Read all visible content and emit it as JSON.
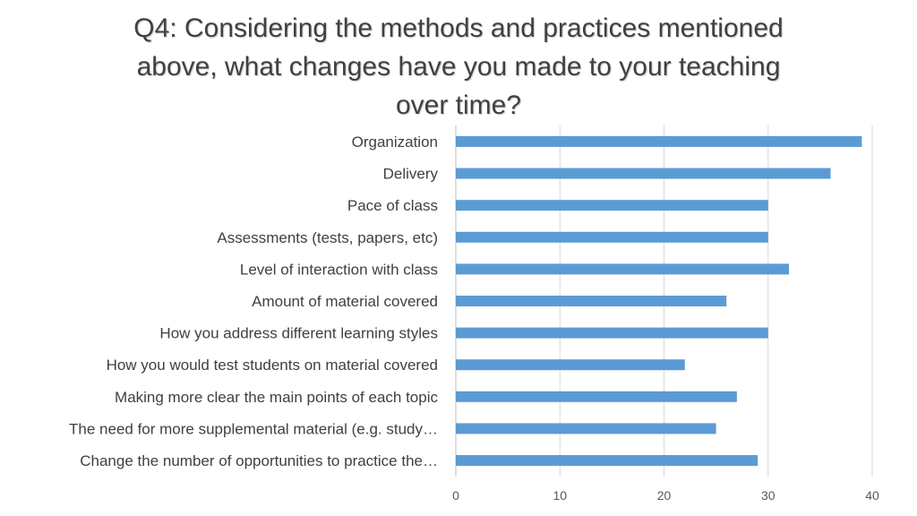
{
  "chart_data": {
    "type": "bar",
    "orientation": "horizontal",
    "title_lines": [
      "Q4: Considering the methods and practices mentioned",
      "above, what changes have you made to your teaching",
      "over  time?"
    ],
    "categories": [
      "Organization",
      "Delivery",
      "Pace of class",
      "Assessments (tests, papers, etc)",
      "Level of interaction with class",
      "Amount of material covered",
      "How you address different learning styles",
      "How you would test students on material covered",
      "Making more clear the main points of each topic",
      "The need for more supplemental material (e.g. study…",
      "Change the number of opportunities to practice the…"
    ],
    "values": [
      39,
      36,
      30,
      30,
      32,
      26,
      30,
      22,
      27,
      25,
      29
    ],
    "xlim": [
      0,
      40
    ],
    "xticks": [
      "0",
      "10",
      "20",
      "30",
      "40"
    ],
    "grid": "vertical",
    "bar_color": "#5b9bd5"
  }
}
